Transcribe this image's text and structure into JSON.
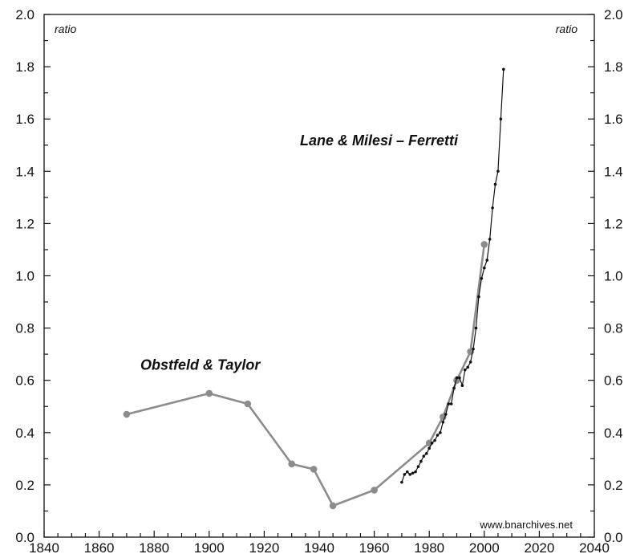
{
  "chart_data": {
    "type": "line",
    "xlim": [
      1840,
      2040
    ],
    "ylim": [
      0,
      2.0
    ],
    "x_ticks": [
      1840,
      1860,
      1880,
      1900,
      1920,
      1940,
      1960,
      1980,
      2000,
      2020,
      2040
    ],
    "y_ticks": [
      "0.0",
      "0.2",
      "0.4",
      "0.6",
      "0.8",
      "1.0",
      "1.2",
      "1.4",
      "1.6",
      "1.8",
      "2.0"
    ],
    "y_unit_left": "ratio",
    "y_unit_right": "ratio",
    "grid": false,
    "series": [
      {
        "name": "Obstfeld & Taylor",
        "color": "#8a8c8e",
        "points": [
          [
            1870,
            0.47
          ],
          [
            1900,
            0.55
          ],
          [
            1914,
            0.51
          ],
          [
            1930,
            0.28
          ],
          [
            1938,
            0.26
          ],
          [
            1945,
            0.12
          ],
          [
            1960,
            0.18
          ],
          [
            1980,
            0.36
          ],
          [
            1985,
            0.46
          ],
          [
            1990,
            0.6
          ],
          [
            1995,
            0.71
          ],
          [
            2000,
            1.12
          ]
        ]
      },
      {
        "name": "Lane & Milesi – Ferretti",
        "color": "#111111",
        "points": [
          [
            1970,
            0.21
          ],
          [
            1971,
            0.24
          ],
          [
            1972,
            0.25
          ],
          [
            1973,
            0.24
          ],
          [
            1974,
            0.245
          ],
          [
            1975,
            0.25
          ],
          [
            1976,
            0.27
          ],
          [
            1977,
            0.29
          ],
          [
            1978,
            0.31
          ],
          [
            1979,
            0.32
          ],
          [
            1980,
            0.34
          ],
          [
            1981,
            0.36
          ],
          [
            1982,
            0.37
          ],
          [
            1983,
            0.39
          ],
          [
            1984,
            0.4
          ],
          [
            1985,
            0.44
          ],
          [
            1986,
            0.47
          ],
          [
            1987,
            0.51
          ],
          [
            1988,
            0.51
          ],
          [
            1989,
            0.57
          ],
          [
            1990,
            0.61
          ],
          [
            1991,
            0.61
          ],
          [
            1992,
            0.58
          ],
          [
            1993,
            0.64
          ],
          [
            1994,
            0.65
          ],
          [
            1995,
            0.67
          ],
          [
            1996,
            0.72
          ],
          [
            1997,
            0.8
          ],
          [
            1998,
            0.92
          ],
          [
            1999,
            0.99
          ],
          [
            2000,
            1.03
          ],
          [
            2001,
            1.06
          ],
          [
            2002,
            1.14
          ],
          [
            2003,
            1.26
          ],
          [
            2004,
            1.35
          ],
          [
            2005,
            1.4
          ],
          [
            2006,
            1.6
          ],
          [
            2007,
            1.79
          ]
        ]
      }
    ],
    "annotations": [
      {
        "text": "Obstfeld & Taylor",
        "x": 1875,
        "y": 0.64
      },
      {
        "text": "Lane & Milesi – Ferretti",
        "x": 1933,
        "y": 1.5
      }
    ],
    "source": "www.bnarchives.net"
  }
}
